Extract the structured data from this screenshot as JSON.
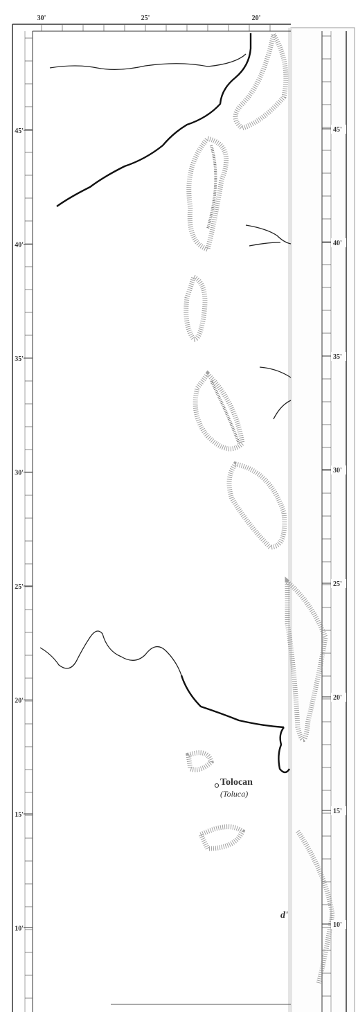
{
  "frame": {
    "top_labels": [
      "30'",
      "25'",
      "20'"
    ],
    "left_labels": [
      "45'",
      "40'",
      "35'",
      "30'",
      "25'",
      "20'",
      "15'",
      "10'"
    ],
    "right_labels": [
      "45'",
      "40'",
      "35'",
      "30'",
      "25'",
      "20'",
      "15'",
      "10'"
    ]
  },
  "places": [
    {
      "name": "Tolocan",
      "alt": "(Toluca)"
    }
  ],
  "fragments": [
    "d'"
  ]
}
